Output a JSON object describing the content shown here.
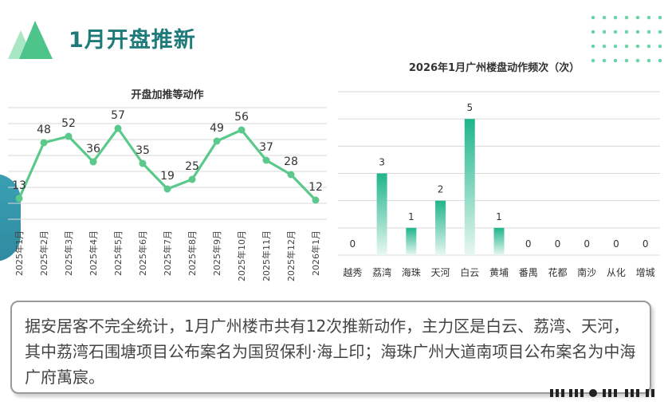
{
  "page": {
    "title": "1月开盘推新",
    "summary": "据安居客不完全统计，1月广州楼市共有12次推新动作，主力区是白云、荔湾、天河，其中荔湾石围塘项目公布案名为国贸保利·海上印；海珠广州大道南项目公布案名为中海广府萬宸。"
  },
  "colors": {
    "accent_green": "#5cc98c",
    "accent_teal": "#1f7a7a",
    "bar_top": "#1fb58c",
    "bar_bottom": "#e8f7f1",
    "deco_blue": "#3aa0b3"
  },
  "chart_data": [
    {
      "type": "line",
      "title": "开盘加推等动作",
      "categories": [
        "2025年1月",
        "2025年2月",
        "2025年3月",
        "2025年4月",
        "2025年5月",
        "2025年6月",
        "2025年7月",
        "2025年8月",
        "2025年9月",
        "2025年10月",
        "2025年11月",
        "2025年12月",
        "2026年1月"
      ],
      "values": [
        13,
        48,
        52,
        36,
        57,
        35,
        19,
        25,
        49,
        56,
        37,
        28,
        12
      ],
      "ylim": [
        0,
        70
      ],
      "grid": true,
      "data_labels": true
    },
    {
      "type": "bar",
      "title": "2026年1月广州楼盘动作频次（次）",
      "categories": [
        "越秀",
        "荔湾",
        "海珠",
        "天河",
        "白云",
        "黄埔",
        "番禺",
        "花都",
        "南沙",
        "从化",
        "增城"
      ],
      "values": [
        0,
        3,
        1,
        2,
        5,
        1,
        0,
        0,
        0,
        0,
        0
      ],
      "ylim": [
        0,
        6
      ],
      "grid": true,
      "data_labels": true
    }
  ]
}
